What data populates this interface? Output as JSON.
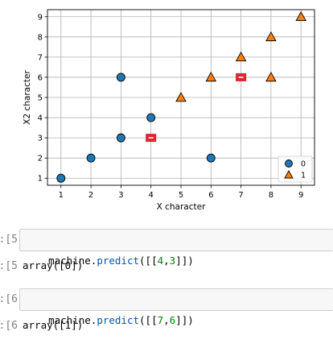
{
  "chart_data": {
    "type": "scatter",
    "title": "",
    "xlabel": "X character",
    "ylabel": "X2 character",
    "xlim": [
      0.55,
      9.45
    ],
    "ylim": [
      0.65,
      9.35
    ],
    "xticks": [
      1,
      2,
      3,
      4,
      5,
      6,
      7,
      8,
      9
    ],
    "yticks": [
      1,
      2,
      3,
      4,
      5,
      6,
      7,
      8,
      9
    ],
    "grid": true,
    "legend_position": "bottom-right",
    "series": [
      {
        "name": "0",
        "marker": "circle",
        "color": "#1f77b4",
        "points": [
          [
            1,
            1
          ],
          [
            2,
            2
          ],
          [
            3,
            3
          ],
          [
            3,
            6
          ],
          [
            4,
            4
          ],
          [
            6,
            2
          ]
        ]
      },
      {
        "name": "1",
        "marker": "triangle",
        "color": "#ff7f0e",
        "points": [
          [
            5,
            5
          ],
          [
            6,
            6
          ],
          [
            7,
            7
          ],
          [
            8,
            6
          ],
          [
            8,
            8
          ],
          [
            9,
            9
          ]
        ]
      }
    ],
    "predicted": {
      "marker": "square",
      "color": "#e0242e",
      "points": [
        [
          4,
          3
        ],
        [
          7,
          6
        ]
      ]
    }
  },
  "cells": [
    {
      "in_prompt": "5]:",
      "code": {
        "obj": "machine.",
        "fn": "predict",
        "open": "([[",
        "a": "4",
        "sep": ",",
        "b": "3",
        "close": "]])"
      },
      "out_prompt": "5]:",
      "output": "array([0])"
    },
    {
      "in_prompt": "6]:",
      "code": {
        "obj": "machine.",
        "fn": "predict",
        "open": "([[",
        "a": "7",
        "sep": ",",
        "b": "6",
        "close": "]])"
      },
      "out_prompt": "6]:",
      "output": "array([1])"
    }
  ]
}
